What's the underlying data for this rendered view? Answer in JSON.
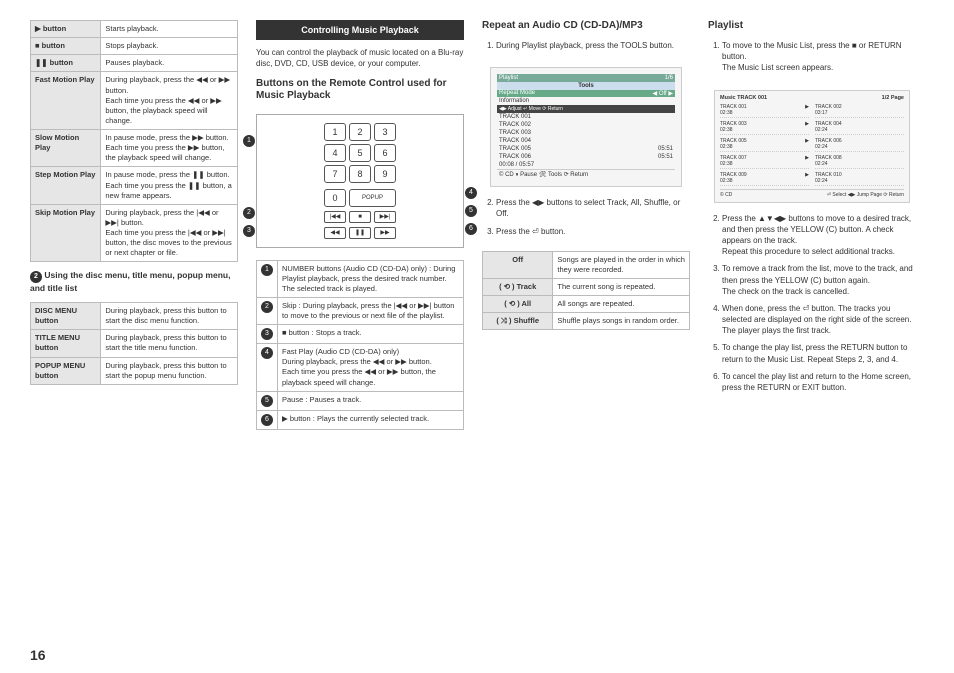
{
  "page_number": "16",
  "col1": {
    "playback_table": [
      {
        "label": "▶ button",
        "desc": "Starts playback."
      },
      {
        "label": "■ button",
        "desc": "Stops playback."
      },
      {
        "label": "❚❚ button",
        "desc": "Pauses playback."
      },
      {
        "label": "Fast Motion Play",
        "desc": "During playback, press the ◀◀ or ▶▶ button.\nEach time you press the ◀◀ or ▶▶ button, the playback speed will change."
      },
      {
        "label": "Slow Motion Play",
        "desc": "In pause mode, press the ▶▶ button.\nEach time you press the ▶▶ button, the playback speed will change."
      },
      {
        "label": "Step Motion Play",
        "desc": "In pause mode, press the ❚❚ button.\nEach time you press the ❚❚ button, a new frame appears."
      },
      {
        "label": "Skip Motion Play",
        "desc": "During playback, press the |◀◀ or ▶▶| button.\nEach time you press the |◀◀ or ▶▶| button, the disc moves to the previous or next chapter or file."
      }
    ],
    "menu_heading_num": "2",
    "menu_heading": "Using the disc menu, title menu, popup menu, and title list",
    "menu_table": [
      {
        "label": "DISC MENU button",
        "desc": "During playback, press this button to start the disc menu function."
      },
      {
        "label": "TITLE MENU button",
        "desc": "During playback, press this button to start the title menu function."
      },
      {
        "label": "POPUP MENU button",
        "desc": "During playback, press this button to start the popup menu function."
      }
    ]
  },
  "col2": {
    "black_heading": "Controlling Music Playback",
    "intro": "You can control the playback of music located on a Blu-ray disc, DVD, CD, USB device, or your computer.",
    "sub_heading": "Buttons on the Remote Control used for Music Playback",
    "remote_numbers": [
      "1",
      "2",
      "3",
      "4",
      "5",
      "6",
      "7",
      "8",
      "9",
      "0",
      "POPUP"
    ],
    "remote_ctrl_row1": [
      "|◀◀",
      "■",
      "▶▶|"
    ],
    "remote_ctrl_row2": [
      "◀◀",
      "❚❚",
      "▶▶"
    ],
    "callouts_left": [
      "1",
      "2",
      "3"
    ],
    "callouts_right": [
      "4",
      "5",
      "6"
    ],
    "callout_table": [
      {
        "n": "1",
        "desc": "NUMBER buttons (Audio CD (CD-DA) only) : During Playlist playback, press the desired track number.\nThe selected track is played."
      },
      {
        "n": "2",
        "desc": "Skip : During playback, press the |◀◀ or ▶▶| button to move to the previous or next file of the playlist."
      },
      {
        "n": "3",
        "desc": "■  button : Stops a track."
      },
      {
        "n": "4",
        "desc": "Fast Play (Audio CD (CD-DA) only)\nDuring playback, press the ◀◀ or ▶▶ button.\nEach time you press the ◀◀ or ▶▶ button, the playback speed will change."
      },
      {
        "n": "5",
        "desc": "Pause : Pauses a track."
      },
      {
        "n": "6",
        "desc": "▶  button : Plays the currently selected track."
      }
    ]
  },
  "col3": {
    "heading": "Repeat an Audio CD (CD-DA)/MP3",
    "step1": "During Playlist playback, press the TOOLS button.",
    "screen": {
      "title": "Playlist",
      "tools_label": "Tools",
      "repeat_row_l": "Repeat Mode",
      "repeat_row_r": "◀   Off   ▶",
      "info_row": "Information",
      "hint": "◀▶ Adjust   ↵ Move   ⟳ Return",
      "tracks": [
        "TRACK 001",
        "TRACK 002",
        "TRACK 003",
        "TRACK 004",
        "TRACK 005",
        "TRACK 006"
      ],
      "times": [
        "",
        "",
        "",
        "",
        "05:51",
        "05:51"
      ],
      "time_bar": "00:08 / 05:57",
      "footer": "© CD          ⏸ Pause    🛠 Tools    ⟳ Return"
    },
    "step2": "Press the ◀▶ buttons to select Track, All, Shuffle, or Off.",
    "step3": "Press the ⏎ button.",
    "repeat_table": [
      {
        "l": "Off",
        "r": "Songs are played in the order in which they were recorded."
      },
      {
        "l": "( ⟲ ) Track",
        "r": "The current song is repeated."
      },
      {
        "l": "( ⟲ ) All",
        "r": "All songs are repeated."
      },
      {
        "l": "( ⤨ ) Shuffle",
        "r": "Shuffle plays songs in random order."
      }
    ]
  },
  "col4": {
    "heading": "Playlist",
    "step1": "To move to the Music List, press the ■ or RETURN button.\nThe Music List screen appears.",
    "tracklist": {
      "title": "Music   TRACK 001",
      "page": "1/2 Page",
      "left": [
        {
          "t": "TRACK 001",
          "d": "02:38"
        },
        {
          "t": "TRACK 003",
          "d": "02:38"
        },
        {
          "t": "TRACK 005",
          "d": "02:38"
        },
        {
          "t": "TRACK 007",
          "d": "02:38"
        },
        {
          "t": "TRACK 009",
          "d": "02:38"
        }
      ],
      "right": [
        {
          "t": "TRACK 002",
          "d": "03:17"
        },
        {
          "t": "TRACK 004",
          "d": "02:24"
        },
        {
          "t": "TRACK 006",
          "d": "02:24"
        },
        {
          "t": "TRACK 008",
          "d": "02:24"
        },
        {
          "t": "TRACK 010",
          "d": "02:24"
        }
      ],
      "footer_l": "© CD",
      "footer_r": "⏎ Select   ◀▶ Jump Page   ⟳ Return"
    },
    "step2": "Press the ▲▼◀▶ buttons to move to a desired track, and then press the YELLOW (C) button. A check appears on the track.\nRepeat this procedure to select additional tracks.",
    "step3": "To remove a track from the list, move to the track, and then press the YELLOW (C) button again.\nThe check on the track is cancelled.",
    "step4": "When done, press the ⏎ button. The tracks you selected are displayed on the right side of the screen. The player plays the first track.",
    "step5": "To change the play list, press the RETURN button to return to the Music List. Repeat Steps 2, 3, and 4.",
    "step6": "To cancel the play list and return to the Home screen, press the RETURN or EXIT button."
  }
}
